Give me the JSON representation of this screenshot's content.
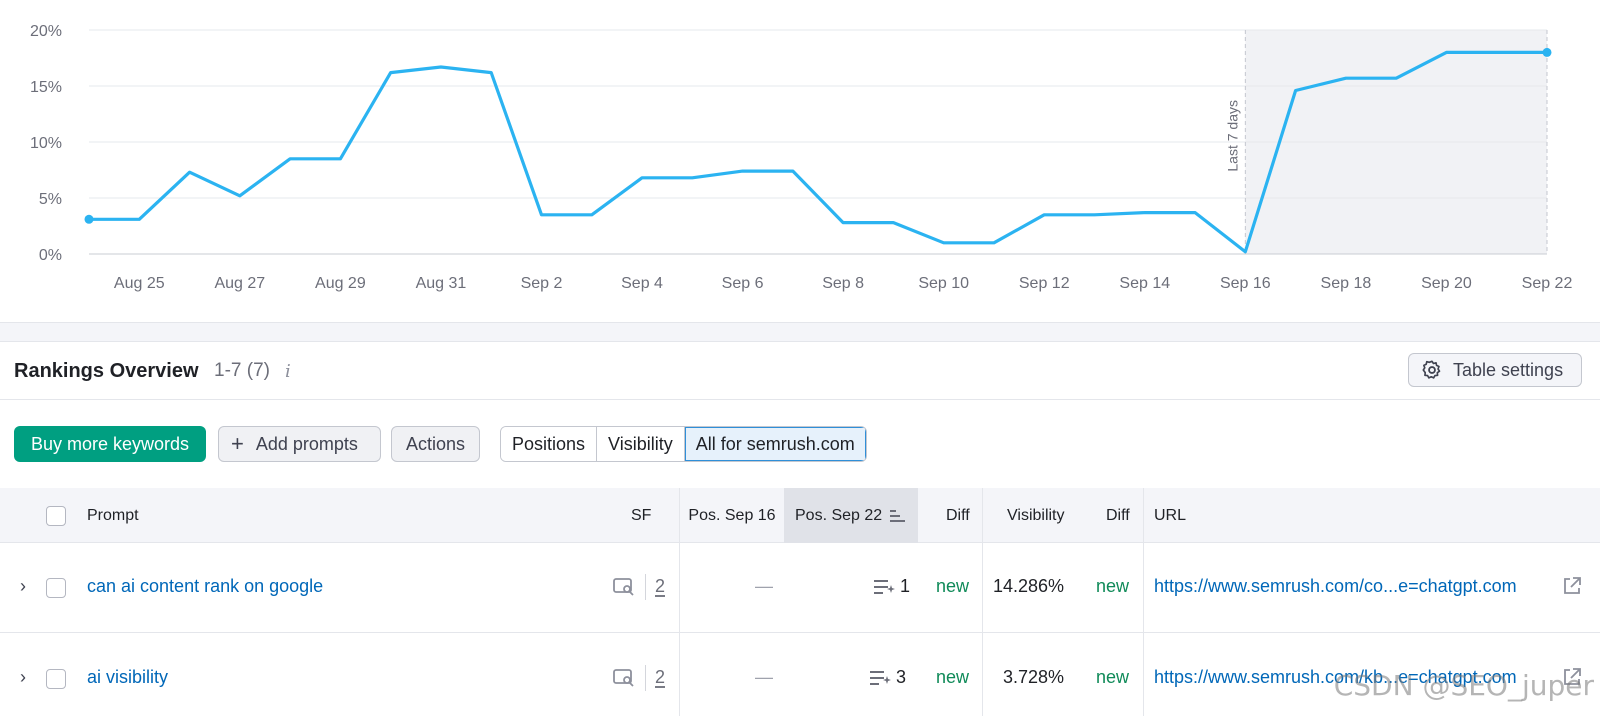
{
  "chart_data": {
    "type": "line",
    "x": [
      "Aug 24",
      "Aug 25",
      "Aug 26",
      "Aug 27",
      "Aug 28",
      "Aug 29",
      "Aug 30",
      "Aug 31",
      "Sep 1",
      "Sep 2",
      "Sep 3",
      "Sep 4",
      "Sep 5",
      "Sep 6",
      "Sep 7",
      "Sep 8",
      "Sep 9",
      "Sep 10",
      "Sep 11",
      "Sep 12",
      "Sep 13",
      "Sep 14",
      "Sep 15",
      "Sep 16",
      "Sep 17",
      "Sep 18",
      "Sep 19",
      "Sep 20",
      "Sep 21",
      "Sep 22"
    ],
    "series": [
      {
        "values": [
          3.1,
          3.1,
          7.3,
          5.2,
          8.5,
          8.5,
          16.2,
          16.7,
          16.2,
          3.5,
          3.5,
          6.8,
          6.8,
          7.4,
          7.4,
          2.8,
          2.8,
          1.0,
          1.0,
          3.5,
          3.5,
          3.7,
          3.7,
          0.2,
          14.6,
          15.7,
          15.7,
          18.0,
          18.0,
          18.0
        ]
      }
    ],
    "xticks": [
      "Aug 25",
      "Aug 27",
      "Aug 29",
      "Aug 31",
      "Sep 2",
      "Sep 4",
      "Sep 6",
      "Sep 8",
      "Sep 10",
      "Sep 12",
      "Sep 14",
      "Sep 16",
      "Sep 18",
      "Sep 20",
      "Sep 22"
    ],
    "yticks": [
      "0%",
      "5%",
      "10%",
      "15%",
      "20%"
    ],
    "ylim": [
      0,
      20
    ],
    "grid": true,
    "annotation": "Last 7 days",
    "color": "#2bb3f1"
  },
  "overview": {
    "title": "Rankings Overview",
    "range": "1-7 (7)",
    "info_glyph": "i",
    "table_settings": "Table settings"
  },
  "toolbar": {
    "buy_label": "Buy more keywords",
    "add_label": "Add prompts",
    "add_glyph": "+",
    "actions_label": "Actions",
    "segments": [
      "Positions",
      "Visibility",
      "All for semrush.com"
    ]
  },
  "table": {
    "headers": {
      "prompt": "Prompt",
      "sf": "SF",
      "pos_old": "Pos. Sep 16",
      "pos_new": "Pos. Sep 22",
      "diff1": "Diff",
      "visibility": "Visibility",
      "diff2": "Diff",
      "url": "URL"
    },
    "rows": [
      {
        "prompt": "can ai content rank on google",
        "sf": "2",
        "pos_old": "—",
        "pos_new": "1",
        "diff1": "new",
        "visibility": "14.286%",
        "diff2": "new",
        "url": "https://www.semrush.com/co...e=chatgpt.com"
      },
      {
        "prompt": "ai visibility",
        "sf": "2",
        "pos_old": "—",
        "pos_new": "3",
        "diff1": "new",
        "visibility": "3.728%",
        "diff2": "new",
        "url": "https://www.semrush.com/kb...e=chatgpt.com"
      }
    ]
  },
  "watermark": "CSDN @SEO_juper",
  "colors": {
    "accent": "#009f81",
    "link": "#0067b8",
    "positive": "#0f8a58",
    "line": "#2bb3f1"
  }
}
